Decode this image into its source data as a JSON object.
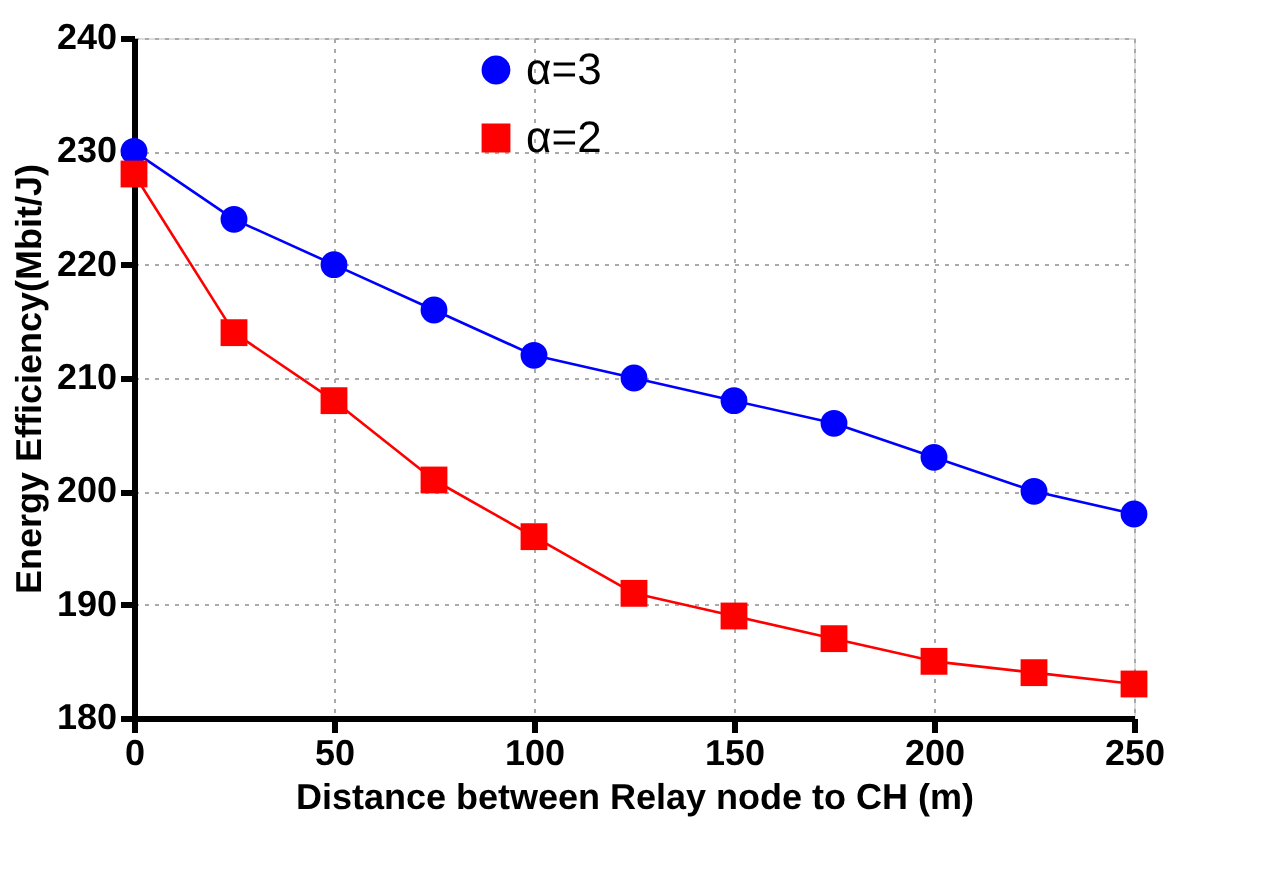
{
  "chart_data": {
    "type": "line",
    "xlabel": "Distance between  Relay node to CH (m)",
    "ylabel": "Energy Efficiency(Mbit/J)",
    "x": [
      0,
      25,
      50,
      75,
      100,
      125,
      150,
      175,
      200,
      225,
      250
    ],
    "series": [
      {
        "name": "α=3",
        "color": "#0000ff",
        "marker": "circle",
        "values": [
          230,
          224,
          220,
          216,
          212,
          210,
          208,
          206,
          203,
          200,
          198
        ]
      },
      {
        "name": "α=2",
        "color": "#ff0000",
        "marker": "square",
        "values": [
          228,
          214,
          208,
          201,
          196,
          191,
          189,
          187,
          185,
          184,
          183
        ]
      }
    ],
    "xlim": [
      0,
      250
    ],
    "xticks": [
      0,
      50,
      100,
      150,
      200,
      250
    ],
    "ylim": [
      180,
      240
    ],
    "yticks": [
      180,
      190,
      200,
      210,
      220,
      230,
      240
    ],
    "grid": true,
    "legend": "top",
    "line_style": "solid"
  }
}
